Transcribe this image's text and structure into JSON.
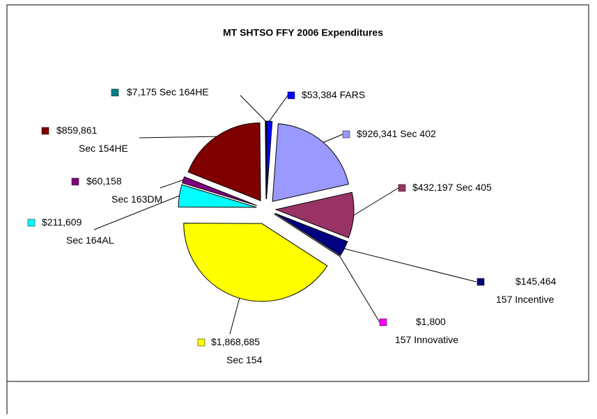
{
  "chart_data": {
    "type": "pie",
    "title": "MT SHTSO FFY 2006 Expenditures",
    "categories": [
      "FARS",
      "Sec 402",
      "Sec 405",
      "157 Incentive",
      "157 Innovative",
      "Sec 154",
      "Sec 164AL",
      "Sec 163DM",
      "Sec 154HE",
      "Sec 164HE"
    ],
    "values": [
      53384,
      926341,
      432197,
      145464,
      1800,
      1868685,
      211609,
      60158,
      859861,
      7175
    ],
    "value_labels": [
      "$53,384",
      "$926,341",
      "$432,197",
      "$145,464",
      "$1,800",
      "$1,868,685",
      "$211,609",
      "$60,158",
      "$859,861",
      "$7,175"
    ],
    "colors": [
      "#0000ff",
      "#9999ff",
      "#993366",
      "#000080",
      "#ff00ff",
      "#ffff00",
      "#00ffff",
      "#800080",
      "#800000",
      "#008080"
    ]
  }
}
